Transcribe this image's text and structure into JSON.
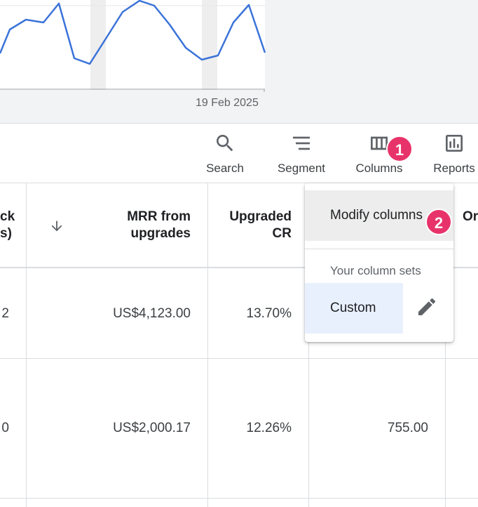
{
  "chart": {
    "date_label": "19 Feb 2025"
  },
  "toolbar": {
    "search_label": "Search",
    "segment_label": "Segment",
    "columns_label": "Columns",
    "reports_label": "Reports"
  },
  "badges": {
    "step1": "1",
    "step2": "2"
  },
  "table": {
    "headers": {
      "col0_line1": "ck",
      "col0_line2": "s)",
      "sort_icon": "arrow-down-icon",
      "mrr_line1": "MRR from",
      "mrr_line2": "upgrades",
      "upgraded_line1": "Upgraded",
      "upgraded_line2": "CR",
      "col5_partial": "Or"
    },
    "rows": [
      {
        "col0": "2",
        "mrr": "US$4,123.00",
        "upgraded_cr": "13.70%",
        "col4": ""
      },
      {
        "col0": "0",
        "mrr": "US$2,000.17",
        "upgraded_cr": "12.26%",
        "col4": "755.00"
      }
    ]
  },
  "menu": {
    "modify_label": "Modify columns",
    "section_label": "Your column sets",
    "custom_label": "Custom",
    "edit_icon": "pencil-icon"
  },
  "colors": {
    "line": "#3b73d9",
    "badge": "#e8336a",
    "selected_set": "#e8f0fe"
  }
}
